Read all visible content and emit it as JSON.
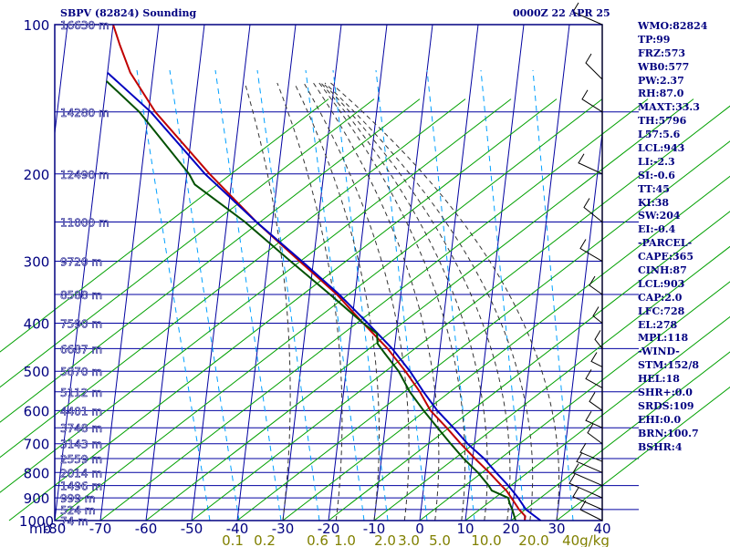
{
  "header": {
    "station": "SBPV (82824) Sounding",
    "valid_time": "0000Z 22 APR 25"
  },
  "indices": [
    "WMO:82824",
    "TP:99",
    "FRZ:573",
    "WB0:577",
    "PW:2.37",
    "RH:87.0",
    "MAXT:33.3",
    "TH:5796",
    "L57:5.6",
    "LCL:943",
    "LI:-2.3",
    "SI:-0.6",
    "TT:45",
    "KI:38",
    "SW:204",
    "EI:-0.4",
    "-PARCEL-",
    "CAPE:365",
    "CINH:87",
    "LCL:903",
    "CAP:2.0",
    "LFC:728",
    "EL:278",
    "MPL:118",
    "-WIND-",
    "STM:152/8",
    "HEL:18",
    "SHR+:0.0",
    "SRDS:109",
    "EHI:0.0",
    "BRN:100.7",
    "BSHR:4"
  ],
  "colors": {
    "frame": "#000080",
    "grid": "#0000a0",
    "dry_adiabat": "#00a000",
    "moist_adiabat": "#333333",
    "mixing_ratio": "#00a0ff",
    "tick_text": "#000080",
    "height_text": "#ffffff",
    "mixing_text": "#808000",
    "temperature": "#c00000",
    "virtual_temperature": "#0000c0",
    "dewpoint": "#005000",
    "wind": "#000000"
  },
  "chart_data": {
    "type": "line",
    "title": "SBPV (82824) Sounding",
    "xlabel": "",
    "ylabel": "mb",
    "pressure_ticks": [
      100,
      200,
      300,
      400,
      500,
      600,
      700,
      800,
      900,
      1000
    ],
    "temperature_ticks": [
      -80,
      -70,
      -60,
      -50,
      -40,
      -30,
      -20,
      -10,
      0,
      10,
      20,
      30,
      40
    ],
    "xlim": [
      -80,
      40
    ],
    "ylim": [
      1000,
      100
    ],
    "y_scale": "log",
    "height_labels": [
      {
        "p": 100,
        "label": "16630 m"
      },
      {
        "p": 150,
        "label": "14280 m"
      },
      {
        "p": 200,
        "label": "12490 m"
      },
      {
        "p": 250,
        "label": "11000 m"
      },
      {
        "p": 300,
        "label": "9720 m"
      },
      {
        "p": 350,
        "label": "8588 m"
      },
      {
        "p": 400,
        "label": "7590 m"
      },
      {
        "p": 450,
        "label": "6687 m"
      },
      {
        "p": 500,
        "label": "5870 m"
      },
      {
        "p": 550,
        "label": "5112 m"
      },
      {
        "p": 600,
        "label": "4401 m"
      },
      {
        "p": 650,
        "label": "3748 m"
      },
      {
        "p": 700,
        "label": "3143 m"
      },
      {
        "p": 750,
        "label": "2559 m"
      },
      {
        "p": 800,
        "label": "2014 m"
      },
      {
        "p": 850,
        "label": "1496 m"
      },
      {
        "p": 900,
        "label": "999 m"
      },
      {
        "p": 950,
        "label": "524 m"
      },
      {
        "p": 1000,
        "label": "74 m"
      }
    ],
    "mixing_ratio_labels": [
      "0.1",
      "0.2",
      "0.6",
      "1.0",
      "2.0",
      "3.0",
      "5.0",
      "10.0",
      "20.0",
      "40g/kg"
    ],
    "series": [
      {
        "p": [
          1000,
          980,
          950,
          925,
          900,
          870,
          850,
          800,
          750,
          700,
          650,
          600,
          550,
          500,
          450,
          400,
          350,
          300,
          250,
          200,
          150,
          125,
          110,
          100
        ],
        "t": [
          23.0,
          23.0,
          21.5,
          20.5,
          19.5,
          18.2,
          17.0,
          14.0,
          10.5,
          7.0,
          3.5,
          -0.5,
          -3.3,
          -7.0,
          -11.5,
          -17.5,
          -24.0,
          -33.0,
          -43.5,
          -55.0,
          -68.5,
          -75.0,
          -78.0,
          -80.0
        ]
      },
      {
        "p": [
          1000,
          950,
          900,
          850,
          800,
          750,
          700,
          650,
          600,
          550,
          500,
          450,
          400,
          350,
          300,
          250,
          200,
          150,
          125
        ],
        "t": [
          26.5,
          23.0,
          21.0,
          18.5,
          15.5,
          12.5,
          8.5,
          5.0,
          1.0,
          -2.5,
          -6.0,
          -10.5,
          -16.5,
          -23.5,
          -32.5,
          -43.5,
          -56.0,
          -69.5,
          -80.0
        ]
      },
      {
        "p": [
          1000,
          950,
          925,
          900,
          870,
          850,
          800,
          750,
          700,
          650,
          600,
          550,
          500,
          460,
          440,
          420,
          400,
          350,
          300,
          250,
          210,
          200,
          150,
          130
        ],
        "t": [
          21.0,
          20.0,
          19.3,
          18.8,
          15.0,
          14.2,
          11.5,
          8.0,
          4.8,
          1.5,
          -2.0,
          -5.5,
          -8.5,
          -12.0,
          -13.8,
          -14.2,
          -17.5,
          -25.5,
          -35.0,
          -46.0,
          -58.0,
          -59.5,
          -72.0,
          -80.0
        ]
      }
    ]
  }
}
